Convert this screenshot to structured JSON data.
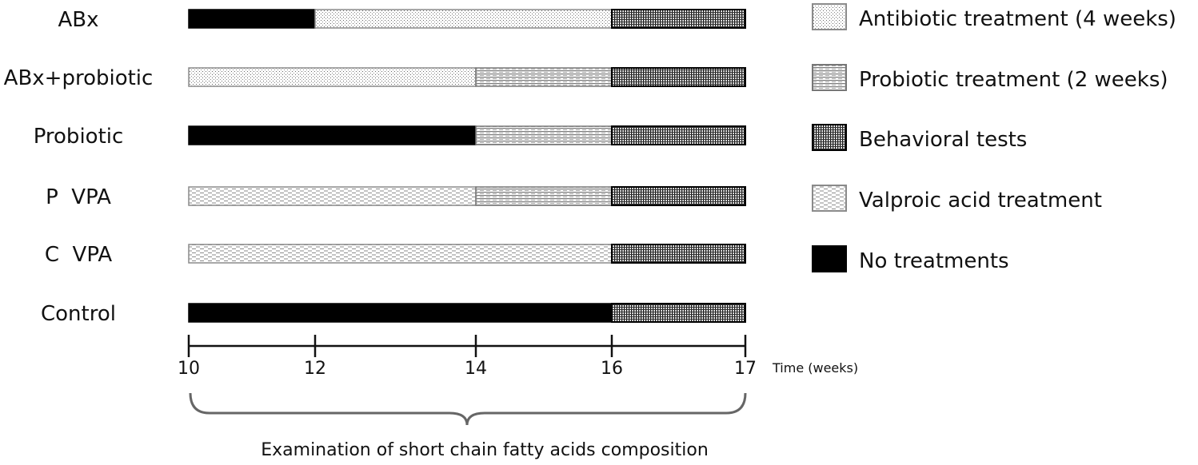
{
  "timeline": {
    "groups": [
      {
        "label": "ABx",
        "segments": [
          {
            "start": 10,
            "end": 12,
            "treatment": "none"
          },
          {
            "start": 12,
            "end": 16,
            "treatment": "antibiotic"
          },
          {
            "start": 16,
            "end": 17,
            "treatment": "behavioral"
          }
        ]
      },
      {
        "label": "ABx+probiotic",
        "segments": [
          {
            "start": 10,
            "end": 14,
            "treatment": "antibiotic"
          },
          {
            "start": 14,
            "end": 16,
            "treatment": "probiotic"
          },
          {
            "start": 16,
            "end": 17,
            "treatment": "behavioral"
          }
        ]
      },
      {
        "label": "Probiotic",
        "segments": [
          {
            "start": 10,
            "end": 14,
            "treatment": "none"
          },
          {
            "start": 14,
            "end": 16,
            "treatment": "probiotic"
          },
          {
            "start": 16,
            "end": 17,
            "treatment": "behavioral"
          }
        ]
      },
      {
        "label": "P  VPA",
        "segments": [
          {
            "start": 10,
            "end": 14,
            "treatment": "valproic"
          },
          {
            "start": 14,
            "end": 16,
            "treatment": "probiotic"
          },
          {
            "start": 16,
            "end": 17,
            "treatment": "behavioral"
          }
        ]
      },
      {
        "label": "C  VPA",
        "segments": [
          {
            "start": 10,
            "end": 16,
            "treatment": "valproic"
          },
          {
            "start": 16,
            "end": 17,
            "treatment": "behavioral"
          }
        ]
      },
      {
        "label": "Control",
        "segments": [
          {
            "start": 10,
            "end": 16,
            "treatment": "none"
          },
          {
            "start": 16,
            "end": 17,
            "treatment": "behavioral"
          }
        ]
      }
    ],
    "axis": {
      "ticks": [
        10,
        12,
        14,
        16,
        17
      ],
      "tick_labels": [
        "10",
        "12",
        "14",
        "16",
        "17"
      ],
      "unit_label": "Time (weeks)"
    },
    "brace_caption": "Examination of short chain fatty acids composition"
  },
  "legend": {
    "items": [
      {
        "key": "antibiotic",
        "label": "Antibiotic treatment (4 weeks)"
      },
      {
        "key": "probiotic",
        "label": "Probiotic treatment (2 weeks)"
      },
      {
        "key": "behavioral",
        "label": "Behavioral tests"
      },
      {
        "key": "valproic",
        "label": "Valproic acid treatment"
      },
      {
        "key": "none",
        "label": "No treatments"
      }
    ]
  }
}
